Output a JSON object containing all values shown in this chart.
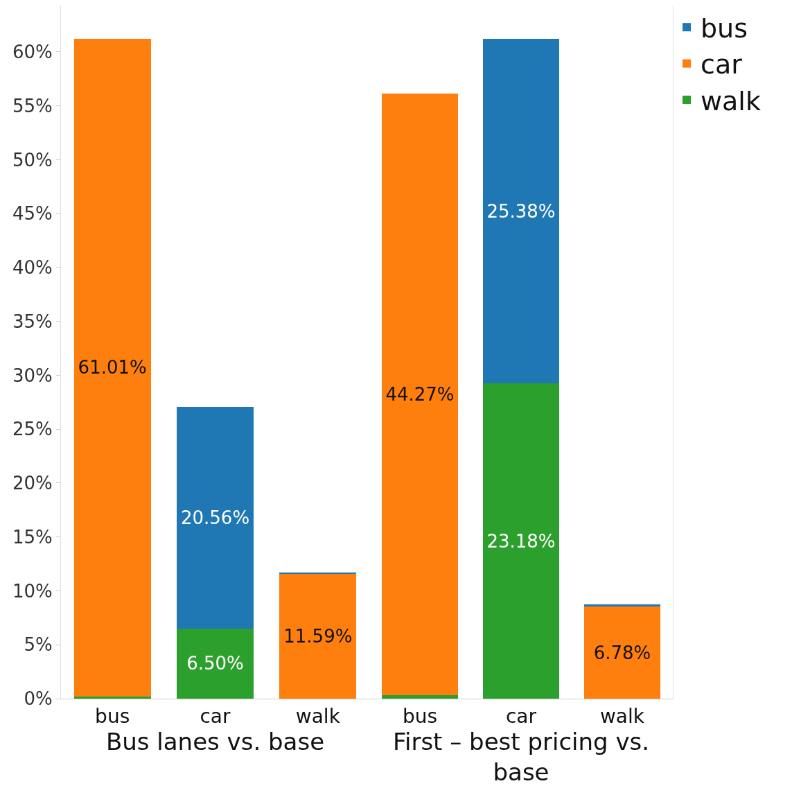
{
  "chart_data": [
    {
      "type": "bar",
      "xlabel": "Bus lanes vs. base",
      "categories": [
        "bus",
        "car",
        "walk"
      ],
      "stacked": true,
      "ylim": [
        0,
        64.3
      ],
      "yticks": [
        {
          "value": 0,
          "label": "0%"
        },
        {
          "value": 5,
          "label": "5%"
        },
        {
          "value": 10,
          "label": "10%"
        },
        {
          "value": 15,
          "label": "15%"
        },
        {
          "value": 20,
          "label": "20%"
        },
        {
          "value": 25,
          "label": "25%"
        },
        {
          "value": 30,
          "label": "30%"
        },
        {
          "value": 35,
          "label": "35%"
        },
        {
          "value": 40,
          "label": "40%"
        },
        {
          "value": 45,
          "label": "45%"
        },
        {
          "value": 50,
          "label": "50%"
        },
        {
          "value": 55,
          "label": "55%"
        },
        {
          "value": 60,
          "label": "60%"
        }
      ],
      "grid": false,
      "legend": false,
      "series": [
        {
          "color": "#2ca02c",
          "values": [
            0.2,
            6.5,
            0
          ],
          "value_labels": [
            null,
            "6.50%",
            null
          ]
        },
        {
          "color": "#ff7f0e",
          "values": [
            61.01,
            0,
            11.59
          ],
          "value_labels": [
            "61.01%",
            null,
            "11.59%"
          ]
        },
        {
          "color": "#1f77b4",
          "values": [
            0,
            20.56,
            0.1
          ],
          "value_labels": [
            null,
            "20.56%",
            null
          ]
        }
      ]
    },
    {
      "type": "bar",
      "xlabel": "First – best pricing vs. base",
      "categories": [
        "bus",
        "car",
        "walk"
      ],
      "stacked": true,
      "ylim": [
        0,
        51
      ],
      "tick_labels": "x",
      "grid": false,
      "legend": "top right",
      "series": [
        {
          "name": "walk",
          "color": "#2ca02c",
          "values": [
            0.25,
            23.18,
            0
          ],
          "value_labels": [
            null,
            "23.18%",
            null
          ]
        },
        {
          "name": "car",
          "color": "#ff7f0e",
          "values": [
            44.27,
            0,
            6.78
          ],
          "value_labels": [
            "44.27%",
            null,
            "6.78%"
          ]
        },
        {
          "name": "bus",
          "color": "#1f77b4",
          "values": [
            0,
            25.38,
            0.15
          ],
          "value_labels": [
            null,
            "25.38%",
            null
          ]
        }
      ]
    }
  ]
}
